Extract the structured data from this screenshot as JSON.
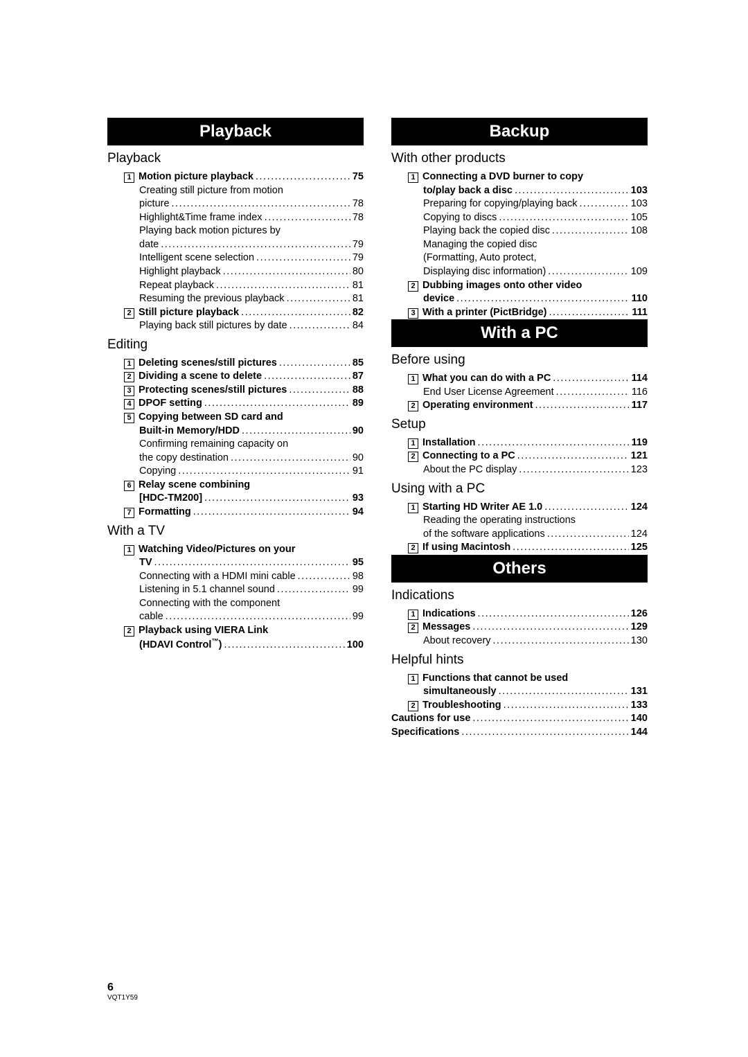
{
  "colors": {
    "bg": "#ffffff",
    "header_bg": "#000000",
    "header_fg": "#ffffff",
    "text": "#000000"
  },
  "font": {
    "family": "Arial, Helvetica, sans-serif",
    "header_size_pt": 18,
    "sub_size_pt": 14,
    "line_size_pt": 11
  },
  "left_sections": [
    {
      "header": "Playback",
      "groups": [
        {
          "sub": "Playback",
          "lines": [
            {
              "num": "1",
              "label": "Motion picture playback",
              "page": "75",
              "bold": true
            },
            {
              "label": "Creating still picture from motion",
              "wrap": true
            },
            {
              "label": "picture",
              "page": "78",
              "cont": true
            },
            {
              "label": "Highlight&Time frame index",
              "page": "78"
            },
            {
              "label": "Playing back motion pictures by",
              "wrap": true
            },
            {
              "label": "date",
              "page": "79",
              "cont": true
            },
            {
              "label": "Intelligent scene selection",
              "page": "79"
            },
            {
              "label": "Highlight playback",
              "page": "80"
            },
            {
              "label": "Repeat playback",
              "page": "81"
            },
            {
              "label": "Resuming the previous playback",
              "page": "81"
            },
            {
              "num": "2",
              "label": "Still picture playback",
              "page": "82",
              "bold": true
            },
            {
              "label": "Playing back still pictures by date",
              "page": "84"
            }
          ]
        },
        {
          "sub": "Editing",
          "lines": [
            {
              "num": "1",
              "label": "Deleting scenes/still pictures",
              "page": "85",
              "bold": true
            },
            {
              "num": "2",
              "label": "Dividing a scene to delete",
              "page": "87",
              "bold": true
            },
            {
              "num": "3",
              "label": "Protecting scenes/still pictures",
              "page": "88",
              "bold": true
            },
            {
              "num": "4",
              "label": "DPOF setting",
              "page": "89",
              "bold": true
            },
            {
              "num": "5",
              "label": "Copying between SD card and",
              "bold": true,
              "wrap": true
            },
            {
              "label": "Built-in Memory/HDD",
              "page": "90",
              "bold": true,
              "cont": true
            },
            {
              "label": "Confirming remaining capacity on",
              "wrap": true
            },
            {
              "label": "the copy destination",
              "page": "90",
              "cont": true
            },
            {
              "label": "Copying",
              "page": "91"
            },
            {
              "num": "6",
              "label": "Relay scene combining",
              "bold": true,
              "wrap": true
            },
            {
              "label": "[HDC-TM200]",
              "page": "93",
              "bold": true,
              "cont": true
            },
            {
              "num": "7",
              "label": "Formatting",
              "page": "94",
              "bold": true
            }
          ]
        },
        {
          "sub": "With a TV",
          "lines": [
            {
              "num": "1",
              "label": "Watching Video/Pictures on your",
              "bold": true,
              "wrap": true
            },
            {
              "label": "TV",
              "page": "95",
              "bold": true,
              "cont": true
            },
            {
              "label": "Connecting with a HDMI mini cable",
              "page": "98"
            },
            {
              "label": "Listening in 5.1 channel sound",
              "page": "99"
            },
            {
              "label": "Connecting with the component",
              "wrap": true
            },
            {
              "label": "cable",
              "page": "99",
              "cont": true
            },
            {
              "num": "2",
              "label": "Playback using VIERA Link",
              "bold": true,
              "wrap": true
            },
            {
              "label_html": "(HDAVI Control<sup>™</sup>)",
              "page": "100",
              "bold": true,
              "cont": true
            }
          ]
        }
      ]
    }
  ],
  "right_sections": [
    {
      "header": "Backup",
      "groups": [
        {
          "sub": "With other products",
          "lines": [
            {
              "num": "1",
              "label": "Connecting a DVD burner to copy",
              "bold": true,
              "wrap": true
            },
            {
              "label": "to/play back a disc",
              "page": "103",
              "bold": true,
              "cont": true
            },
            {
              "label": "Preparing for copying/playing back",
              "page": "103"
            },
            {
              "label": "Copying to discs",
              "page": "105"
            },
            {
              "label": "Playing back the copied disc",
              "page": "108"
            },
            {
              "label": "Managing the copied disc",
              "wrap": true
            },
            {
              "label": "(Formatting, Auto protect,",
              "wrap": true,
              "cont": true
            },
            {
              "label": "Displaying disc information)",
              "page": "109",
              "cont": true
            },
            {
              "num": "2",
              "label": "Dubbing images onto other video",
              "bold": true,
              "wrap": true
            },
            {
              "label": "device",
              "page": "110",
              "bold": true,
              "cont": true
            },
            {
              "num": "3",
              "label": "With a printer (PictBridge)",
              "page": "111",
              "bold": true
            }
          ]
        }
      ]
    },
    {
      "header": "With a PC",
      "groups": [
        {
          "sub": "Before using",
          "lines": [
            {
              "num": "1",
              "label": "What you can do with a PC",
              "page": "114",
              "bold": true
            },
            {
              "label": "End User License Agreement",
              "page": "116"
            },
            {
              "num": "2",
              "label": "Operating environment",
              "page": "117",
              "bold": true
            }
          ]
        },
        {
          "sub": "Setup",
          "lines": [
            {
              "num": "1",
              "label": "Installation",
              "page": "119",
              "bold": true
            },
            {
              "num": "2",
              "label": "Connecting to a PC",
              "page": "121",
              "bold": true
            },
            {
              "label": "About the PC display",
              "page": "123"
            }
          ]
        },
        {
          "sub": "Using with a PC",
          "lines": [
            {
              "num": "1",
              "label": "Starting HD Writer AE 1.0",
              "page": "124",
              "bold": true
            },
            {
              "label": "Reading the operating instructions",
              "wrap": true
            },
            {
              "label": "of the software applications",
              "page": "124",
              "cont": true
            },
            {
              "num": "2",
              "label": "If using Macintosh",
              "page": "125",
              "bold": true
            }
          ]
        }
      ]
    },
    {
      "header": "Others",
      "groups": [
        {
          "sub": "Indications",
          "lines": [
            {
              "num": "1",
              "label": "Indications",
              "page": "126",
              "bold": true
            },
            {
              "num": "2",
              "label": "Messages",
              "page": "129",
              "bold": true
            },
            {
              "label": "About recovery",
              "page": "130"
            }
          ]
        },
        {
          "sub": "Helpful hints",
          "lines": [
            {
              "num": "1",
              "label": "Functions that cannot be used",
              "bold": true,
              "wrap": true
            },
            {
              "label": "simultaneously",
              "page": "131",
              "bold": true,
              "cont": true
            },
            {
              "num": "2",
              "label": "Troubleshooting",
              "page": "133",
              "bold": true
            },
            {
              "label": "Cautions for use",
              "page": "140",
              "bold": true,
              "no_indent": true
            },
            {
              "label": "Specifications",
              "page": "144",
              "bold": true,
              "no_indent": true
            }
          ]
        }
      ]
    }
  ],
  "footer": {
    "page": "6",
    "code": "VQT1Y59"
  }
}
